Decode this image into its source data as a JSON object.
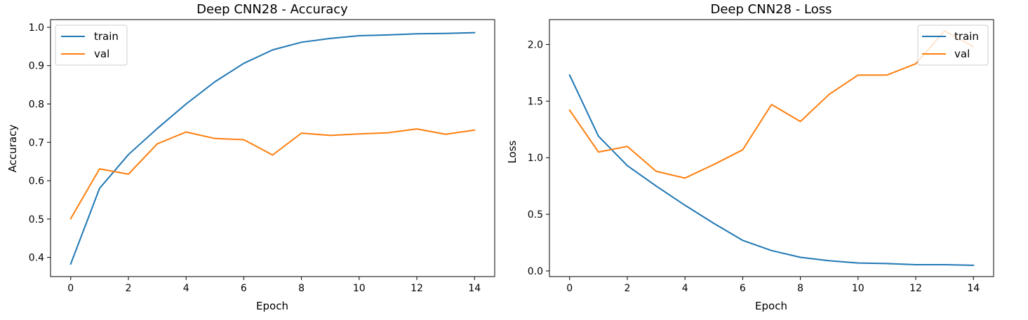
{
  "chart_data": [
    {
      "type": "line",
      "title": "Deep CNN28 - Accuracy",
      "xlabel": "Epoch",
      "ylabel": "Accuracy",
      "xlim": [
        -0.7,
        14.7
      ],
      "ylim": [
        0.35,
        1.02
      ],
      "xticks": [
        0,
        2,
        4,
        6,
        8,
        10,
        12,
        14
      ],
      "yticks": [
        0.4,
        0.5,
        0.6,
        0.7,
        0.8,
        0.9,
        1.0
      ],
      "ytick_labels": [
        "0.4",
        "0.5",
        "0.6",
        "0.7",
        "0.8",
        "0.9",
        "1.0"
      ],
      "legend_position": "upper-left",
      "x": [
        0,
        1,
        2,
        3,
        4,
        5,
        6,
        7,
        8,
        9,
        10,
        11,
        12,
        13,
        14
      ],
      "series": [
        {
          "name": "train",
          "color": "#1f77b4",
          "values": [
            0.383,
            0.58,
            0.668,
            0.736,
            0.8,
            0.858,
            0.906,
            0.941,
            0.961,
            0.971,
            0.978,
            0.98,
            0.983,
            0.984,
            0.986
          ]
        },
        {
          "name": "val",
          "color": "#ff7f0e",
          "values": [
            0.501,
            0.631,
            0.617,
            0.696,
            0.727,
            0.71,
            0.707,
            0.667,
            0.724,
            0.718,
            0.722,
            0.725,
            0.735,
            0.721,
            0.732
          ]
        }
      ]
    },
    {
      "type": "line",
      "title": "Deep CNN28 - Loss",
      "xlabel": "Epoch",
      "ylabel": "Loss",
      "xlim": [
        -0.7,
        14.7
      ],
      "ylim": [
        -0.05,
        2.22
      ],
      "xticks": [
        0,
        2,
        4,
        6,
        8,
        10,
        12,
        14
      ],
      "yticks": [
        0.0,
        0.5,
        1.0,
        1.5,
        2.0
      ],
      "ytick_labels": [
        "0.0",
        "0.5",
        "1.0",
        "1.5",
        "2.0"
      ],
      "legend_position": "upper-right",
      "x": [
        0,
        1,
        2,
        3,
        4,
        5,
        6,
        7,
        8,
        9,
        10,
        11,
        12,
        13,
        14
      ],
      "series": [
        {
          "name": "train",
          "color": "#1f77b4",
          "values": [
            1.73,
            1.19,
            0.93,
            0.75,
            0.58,
            0.42,
            0.27,
            0.18,
            0.12,
            0.09,
            0.07,
            0.065,
            0.055,
            0.055,
            0.05
          ]
        },
        {
          "name": "val",
          "color": "#ff7f0e",
          "values": [
            1.42,
            1.05,
            1.1,
            0.88,
            0.82,
            0.94,
            1.07,
            1.47,
            1.32,
            1.56,
            1.73,
            1.73,
            1.83,
            2.12,
            1.98
          ]
        }
      ]
    }
  ]
}
